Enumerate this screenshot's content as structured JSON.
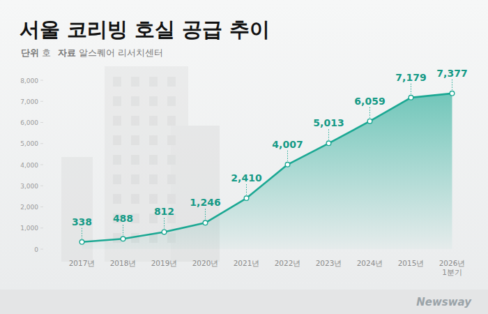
{
  "chart_data": {
    "type": "line",
    "title": "서울 코리빙 호실 공급 추이",
    "unit_label": "단위",
    "unit": "호",
    "source_label": "자료",
    "source": "알스퀘어 리서치센터",
    "watermark": "Newsway",
    "categories": [
      "2017년",
      "2018년",
      "2019년",
      "2020년",
      "2021년",
      "2022년",
      "2023년",
      "2024년",
      "2015년",
      "2026년 1분기"
    ],
    "values": [
      338,
      488,
      812,
      1246,
      2410,
      4007,
      5013,
      6059,
      7179,
      7377
    ],
    "value_labels": [
      "338",
      "488",
      "812",
      "1,246",
      "2,410",
      "4,007",
      "5,013",
      "6,059",
      "7,179",
      "7,377"
    ],
    "color": "#1ba893",
    "marker": "circle",
    "data_labels": true,
    "grid": false,
    "ylim": [
      0,
      8000
    ],
    "yticks": [
      0,
      {
        "value": 1000,
        "label": "1,000"
      },
      {
        "value": 2000,
        "label": "2,000"
      },
      {
        "value": 3000,
        "label": "3,000"
      },
      {
        "value": 4000,
        "label": "4,000"
      },
      {
        "value": 5000,
        "label": "5,000"
      },
      {
        "value": 6000,
        "label": "6,000"
      },
      {
        "value": 7000,
        "label": "7,000"
      },
      {
        "value": 8000,
        "label": "8,000"
      }
    ]
  }
}
